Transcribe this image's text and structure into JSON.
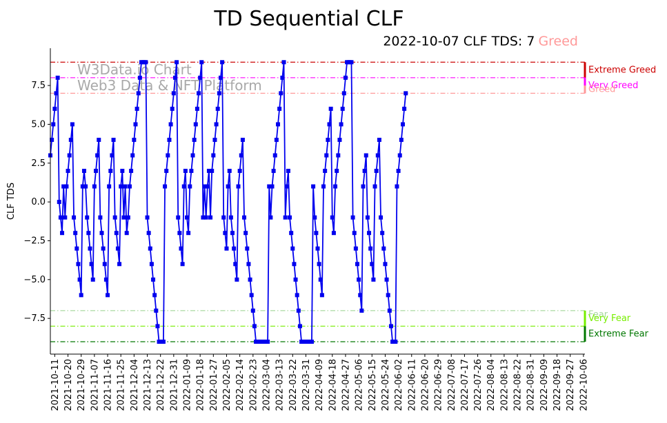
{
  "chart_data": {
    "type": "line",
    "title": "TD Sequential CLF",
    "subtitle": "2022-10-07 CLF TDS: 7",
    "subtitle_status": "Greed",
    "subtitle_status_color": "#ff9999",
    "ylabel": "CLF TDS",
    "xlabel": "",
    "ylim": [
      -9.8,
      9.9
    ],
    "yticks": [
      {
        "value": 7.5,
        "label": "7.5"
      },
      {
        "value": 5.0,
        "label": "5.0"
      },
      {
        "value": 2.5,
        "label": "2.5"
      },
      {
        "value": 0.0,
        "label": "0.0"
      },
      {
        "value": -2.5,
        "label": "−2.5"
      },
      {
        "value": -5.0,
        "label": "−5.0"
      },
      {
        "value": -7.5,
        "label": "−7.5"
      }
    ],
    "x_start": "2021-10-08",
    "x_end": "2022-10-07",
    "xticks": [
      "2021-10-11",
      "2021-10-20",
      "2021-10-29",
      "2021-11-07",
      "2021-11-16",
      "2021-11-25",
      "2021-12-04",
      "2021-12-13",
      "2021-12-22",
      "2021-12-31",
      "2022-01-09",
      "2022-01-18",
      "2022-01-27",
      "2022-02-05",
      "2022-02-14",
      "2022-02-23",
      "2022-03-04",
      "2022-03-13",
      "2022-03-22",
      "2022-03-31",
      "2022-04-09",
      "2022-04-18",
      "2022-04-27",
      "2022-05-06",
      "2022-05-15",
      "2022-05-24",
      "2022-06-02",
      "2022-06-11",
      "2022-06-20",
      "2022-06-29",
      "2022-07-08",
      "2022-07-17",
      "2022-07-26",
      "2022-08-04",
      "2022-08-13",
      "2022-08-22",
      "2022-08-31",
      "2022-09-09",
      "2022-09-18",
      "2022-09-27",
      "2022-10-06"
    ],
    "thresholds": [
      {
        "value": 9,
        "label": "Extreme Greed",
        "color": "#cc0000"
      },
      {
        "value": 8,
        "label": "Very Greed",
        "color": "#ff00ff"
      },
      {
        "value": 7,
        "label": "Greed",
        "color": "#ff9999"
      },
      {
        "value": -7,
        "label": "Fear",
        "color": "#a8d8a0"
      },
      {
        "value": -8,
        "label": "Very Fear",
        "color": "#77ee00"
      },
      {
        "value": -9,
        "label": "Extreme Fear",
        "color": "#007700"
      }
    ],
    "watermark": [
      "W3Data.io Chart",
      "Web3 Data & NFT Platform"
    ],
    "series": [
      {
        "color": "#0000ee",
        "values": [
          3,
          4,
          5,
          6,
          7,
          8,
          0,
          -1,
          -2,
          1,
          -1,
          1,
          2,
          3,
          4,
          5,
          -1,
          -2,
          -3,
          -4,
          -5,
          -6,
          1,
          2,
          1,
          -1,
          -2,
          -3,
          -4,
          -5,
          1,
          2,
          3,
          4,
          -1,
          -2,
          -3,
          -4,
          -5,
          -6,
          1,
          2,
          3,
          4,
          -1,
          -2,
          -3,
          -4,
          1,
          2,
          -1,
          1,
          -2,
          -1,
          1,
          2,
          3,
          4,
          5,
          6,
          7,
          8,
          9,
          9,
          9,
          9,
          -1,
          -2,
          -3,
          -4,
          -5,
          -6,
          -7,
          -8,
          -9,
          -9,
          -9,
          -9,
          1,
          2,
          3,
          4,
          5,
          6,
          7,
          8,
          9,
          -1,
          -2,
          -3,
          -4,
          1,
          2,
          -1,
          -2,
          1,
          2,
          3,
          4,
          5,
          6,
          7,
          8,
          9,
          -1,
          1,
          -1,
          1,
          2,
          -1,
          2,
          3,
          4,
          5,
          6,
          7,
          8,
          9,
          -1,
          -2,
          -3,
          1,
          2,
          -1,
          -2,
          -3,
          -4,
          -5,
          1,
          2,
          3,
          4,
          -1,
          -2,
          -3,
          -4,
          -5,
          -6,
          -7,
          -8,
          -9,
          -9,
          -9,
          -9,
          -9,
          -9,
          -9,
          -9,
          -9,
          1,
          -1,
          1,
          2,
          3,
          4,
          5,
          6,
          7,
          8,
          9,
          -1,
          1,
          2,
          -1,
          -2,
          -3,
          -4,
          -5,
          -6,
          -7,
          -8,
          -9,
          -9,
          -9,
          -9,
          -9,
          -9,
          -9,
          -9,
          1,
          -1,
          -2,
          -3,
          -4,
          -5,
          -6,
          1,
          2,
          3,
          4,
          5,
          6,
          -1,
          -2,
          1,
          2,
          3,
          4,
          5,
          6,
          7,
          8,
          9,
          9,
          9,
          9,
          -1,
          -2,
          -3,
          -4,
          -5,
          -6,
          -7,
          1,
          2,
          3,
          -1,
          -2,
          -3,
          -4,
          -5,
          1,
          2,
          3,
          4,
          -1,
          -2,
          -3,
          -4,
          -5,
          -6,
          -7,
          -8,
          -9,
          -9,
          -9,
          1,
          2,
          3,
          4,
          5,
          6,
          7
        ]
      }
    ]
  }
}
